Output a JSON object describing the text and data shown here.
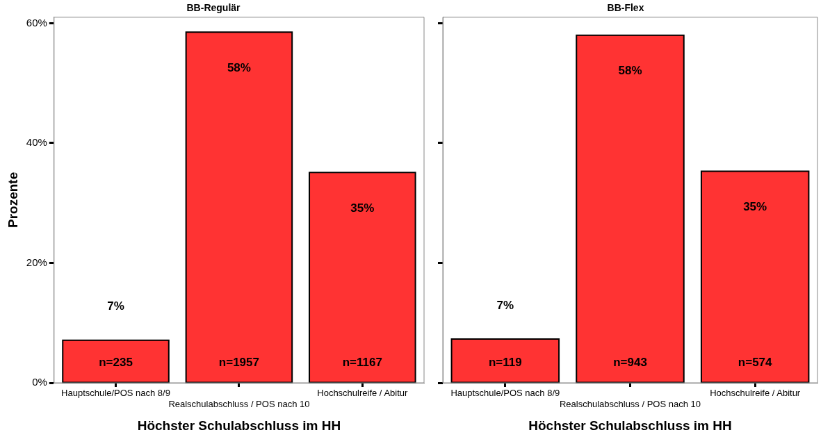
{
  "chart_data": [
    {
      "type": "bar",
      "title": "BB-Regulär",
      "xlabel": "Höchster Schulabschluss im HH",
      "ylabel": "Prozente",
      "categories": [
        "Hauptschule/POS nach 8/9",
        "Realschulabschluss / POS nach 10",
        "Hochschulreife / Abitur"
      ],
      "values": [
        7.1,
        58.5,
        35.1
      ],
      "value_labels": [
        "7%",
        "58%",
        "35%"
      ],
      "color": "#ff3333",
      "ylim": [
        0,
        61
      ],
      "yticks": [
        {
          "value": 0,
          "label": "0%"
        },
        {
          "value": 20,
          "label": "20%"
        },
        {
          "value": 40,
          "label": "40%"
        },
        {
          "value": 60,
          "label": "60%"
        }
      ],
      "annotations": [
        "n=235",
        "n=1957",
        "n=1167"
      ],
      "grid": false,
      "legend": false
    },
    {
      "type": "bar",
      "title": "BB-Flex",
      "xlabel": "Höchster Schulabschluss im HH",
      "categories": [
        "Hauptschule/POS nach 8/9",
        "Realschulabschluss / POS nach 10",
        "Hochschulreife / Abitur"
      ],
      "values": [
        7.3,
        58.0,
        35.3
      ],
      "value_labels": [
        "7%",
        "58%",
        "35%"
      ],
      "color": "#ff3333",
      "ylim": [
        0,
        61
      ],
      "yticks": [
        {
          "value": 0,
          "label": null
        },
        {
          "value": 20,
          "label": null
        },
        {
          "value": 40,
          "label": null
        },
        {
          "value": 60,
          "label": null
        }
      ],
      "annotations": [
        "n=119",
        "n=943",
        "n=574"
      ],
      "grid": false,
      "legend": false,
      "tick_labels": "x"
    }
  ]
}
